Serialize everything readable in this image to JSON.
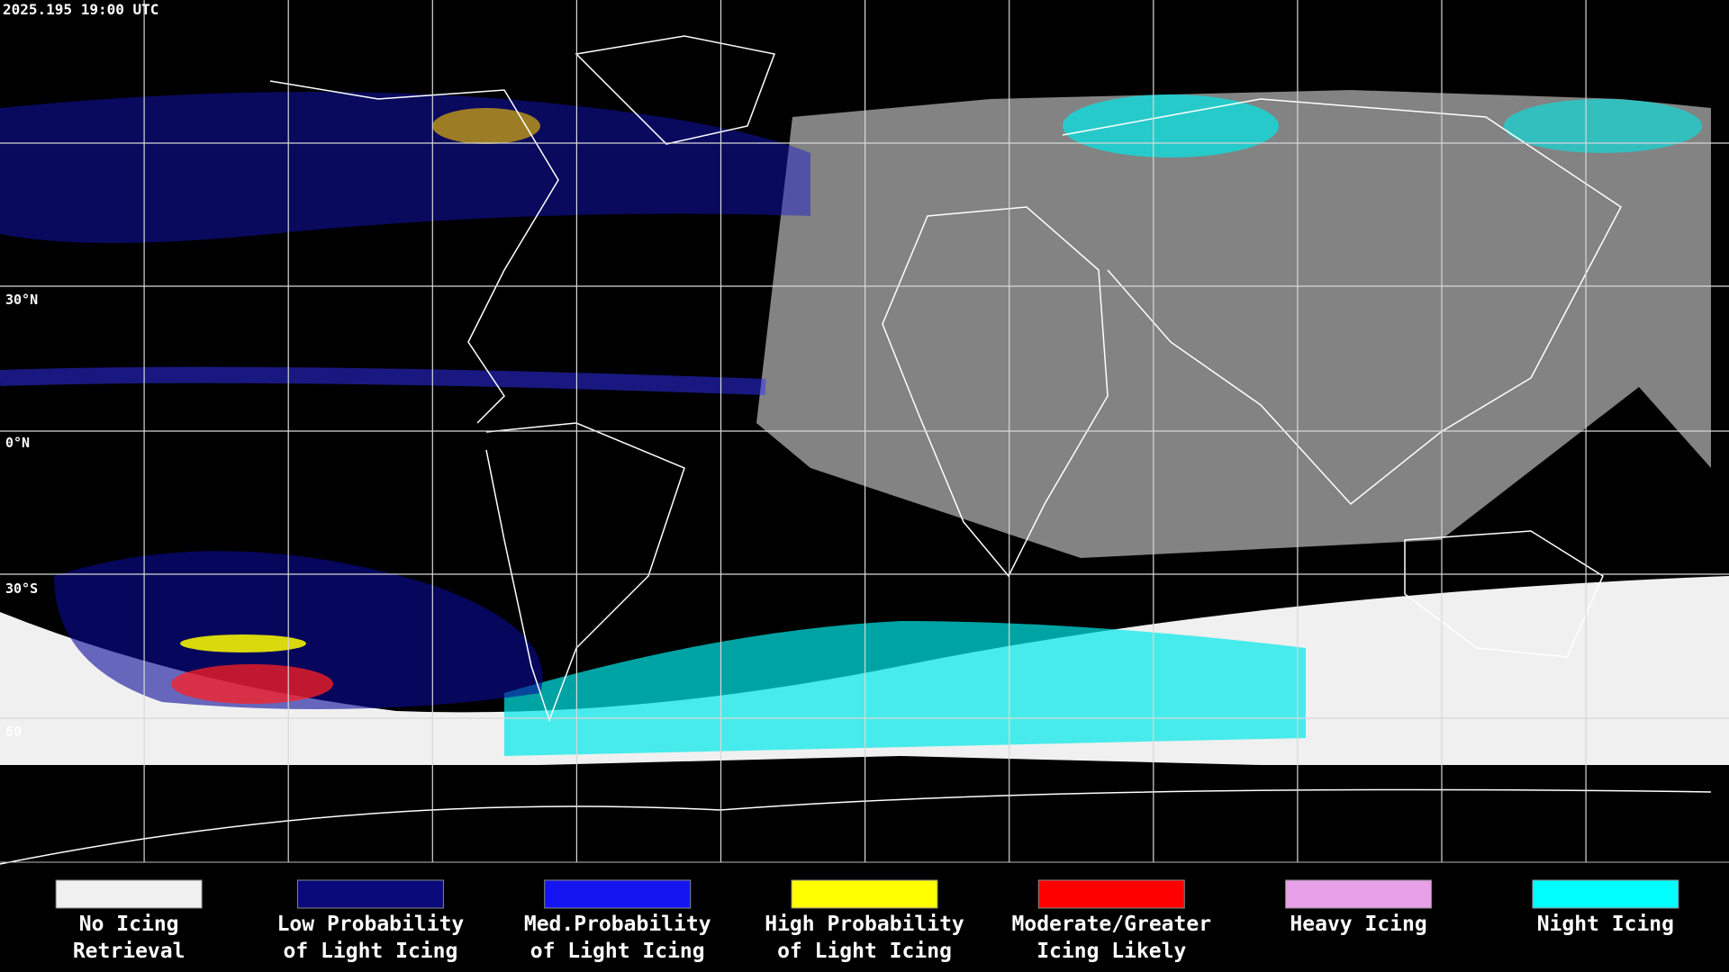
{
  "header": {
    "timestamp": "2025.195 19:00 UTC"
  },
  "grid_labels": [
    "30°N",
    "0°N",
    "30°S",
    "60"
  ],
  "legend": {
    "items": [
      {
        "color": "#f0f0f0",
        "lines": [
          "No Icing",
          "Retrieval"
        ]
      },
      {
        "color": "#0a0a7a",
        "lines": [
          "Low Probability",
          "of Light Icing"
        ]
      },
      {
        "color": "#1414f0",
        "lines": [
          "Med.Probability",
          "of Light Icing"
        ]
      },
      {
        "color": "#ffff00",
        "lines": [
          "High Probability",
          "of Light Icing"
        ]
      },
      {
        "color": "#ff0000",
        "lines": [
          "Moderate/Greater",
          "Icing Likely"
        ]
      },
      {
        "color": "#e8a0e8",
        "lines": [
          "Heavy Icing"
        ]
      },
      {
        "color": "#00ffff",
        "lines": [
          "Night Icing"
        ]
      }
    ]
  }
}
